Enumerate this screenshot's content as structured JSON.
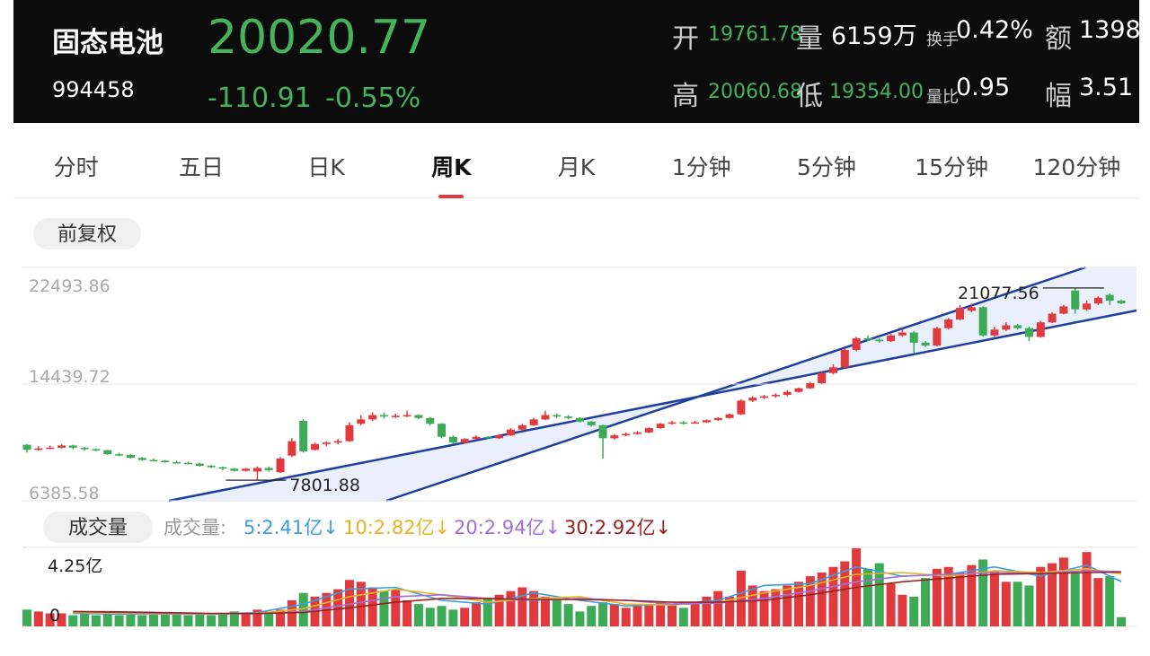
{
  "header": {
    "name": "固态电池",
    "code": "994458",
    "price": "20020.77",
    "change": "-110.91",
    "change_pct": "-0.55%",
    "stats": [
      {
        "label": "开",
        "value": "19761.78"
      },
      {
        "label": "量",
        "value": "6159万"
      },
      {
        "label": "换手",
        "value": "0.42%"
      },
      {
        "label": "额",
        "value": "1398"
      },
      {
        "label": "高",
        "value": "20060.68"
      },
      {
        "label": "低",
        "value": "19354.00"
      },
      {
        "label": "量比",
        "value": "0.95"
      },
      {
        "label": "幅",
        "value": "3.51"
      }
    ]
  },
  "tabs": [
    "分时",
    "五日",
    "日K",
    "周K",
    "月K",
    "1分钟",
    "5分钟",
    "15分钟",
    "120分钟"
  ],
  "active_tab": "周K",
  "adjust_button": "前复权",
  "chart_data": {
    "type": "candlestick",
    "ylim": [
      6385.58,
      22493.86
    ],
    "yticks": [
      22493.86,
      14439.72,
      6385.58
    ],
    "grid": true,
    "up_color": "#e0393e",
    "down_color": "#3daa56",
    "candles": [
      [
        10250,
        10300,
        9700,
        9900
      ],
      [
        9900,
        10150,
        9850,
        10000
      ],
      [
        10000,
        10200,
        9950,
        10050
      ],
      [
        10050,
        10300,
        10000,
        10200
      ],
      [
        10200,
        10250,
        9950,
        10050
      ],
      [
        10050,
        10100,
        9850,
        9950
      ],
      [
        9950,
        10000,
        9800,
        9880
      ],
      [
        9880,
        9900,
        9550,
        9600
      ],
      [
        9600,
        9700,
        9450,
        9550
      ],
      [
        9550,
        9600,
        9300,
        9350
      ],
      [
        9350,
        9400,
        9150,
        9200
      ],
      [
        9200,
        9300,
        9100,
        9150
      ],
      [
        9150,
        9200,
        9000,
        9050
      ],
      [
        9050,
        9150,
        8950,
        9000
      ],
      [
        9000,
        9100,
        8900,
        8950
      ],
      [
        8950,
        9000,
        8750,
        8800
      ],
      [
        8800,
        8850,
        8650,
        8700
      ],
      [
        8700,
        8750,
        8500,
        8600
      ],
      [
        8600,
        8650,
        8400,
        8450
      ],
      [
        8450,
        8650,
        8400,
        8600
      ],
      [
        8400,
        8750,
        7801.88,
        8650
      ],
      [
        8650,
        8750,
        8400,
        8500
      ],
      [
        8350,
        9400,
        8300,
        9300
      ],
      [
        9500,
        10700,
        9400,
        10500
      ],
      [
        11900,
        12000,
        9700,
        9800
      ],
      [
        9900,
        10400,
        9850,
        10300
      ],
      [
        10300,
        10500,
        10150,
        10400
      ],
      [
        10400,
        10650,
        10300,
        10500
      ],
      [
        10500,
        11800,
        10450,
        11600
      ],
      [
        11700,
        12300,
        11600,
        12000
      ],
      [
        12000,
        12500,
        11900,
        12300
      ],
      [
        12300,
        12450,
        12050,
        12200
      ],
      [
        12200,
        12400,
        12100,
        12250
      ],
      [
        12250,
        12600,
        12150,
        12300
      ],
      [
        12300,
        12350,
        12000,
        12100
      ],
      [
        12100,
        12150,
        11600,
        11700
      ],
      [
        11700,
        11750,
        10700,
        10800
      ],
      [
        10800,
        10900,
        10300,
        10400
      ],
      [
        10400,
        10700,
        10350,
        10650
      ],
      [
        10650,
        10900,
        10600,
        10800
      ],
      [
        10800,
        10850,
        10650,
        10700
      ],
      [
        10700,
        10950,
        10650,
        10900
      ],
      [
        10900,
        11400,
        10850,
        11300
      ],
      [
        11300,
        11700,
        11250,
        11600
      ],
      [
        11600,
        12100,
        11550,
        12000
      ],
      [
        12000,
        12600,
        11950,
        12300
      ],
      [
        12300,
        12400,
        12100,
        12200
      ],
      [
        12200,
        12300,
        12000,
        12100
      ],
      [
        12100,
        12150,
        11800,
        11850
      ],
      [
        11850,
        11900,
        11500,
        11600
      ],
      [
        11600,
        11650,
        9300,
        10700
      ],
      [
        10700,
        11000,
        10600,
        10900
      ],
      [
        10900,
        11100,
        10850,
        11000
      ],
      [
        11000,
        11200,
        10950,
        11100
      ],
      [
        11100,
        11450,
        11050,
        11400
      ],
      [
        11400,
        11750,
        11350,
        11700
      ],
      [
        11700,
        11900,
        11650,
        11800
      ],
      [
        11800,
        11900,
        11650,
        11750
      ],
      [
        11750,
        11900,
        11700,
        11800
      ],
      [
        11800,
        12000,
        11750,
        11950
      ],
      [
        11950,
        12150,
        11900,
        12100
      ],
      [
        12100,
        12400,
        12050,
        12350
      ],
      [
        12350,
        13400,
        12300,
        13300
      ],
      [
        13300,
        13600,
        13200,
        13500
      ],
      [
        13500,
        13700,
        13400,
        13600
      ],
      [
        13600,
        13800,
        13500,
        13700
      ],
      [
        13700,
        14000,
        13600,
        13900
      ],
      [
        13900,
        14200,
        13850,
        14150
      ],
      [
        14150,
        14600,
        14100,
        14500
      ],
      [
        14500,
        15300,
        14450,
        15200
      ],
      [
        15200,
        15800,
        15100,
        15600
      ],
      [
        15600,
        16900,
        15550,
        16800
      ],
      [
        16800,
        17700,
        16700,
        17600
      ],
      [
        17600,
        17800,
        17400,
        17500
      ],
      [
        17500,
        17600,
        17300,
        17400
      ],
      [
        17400,
        17900,
        17350,
        17800
      ],
      [
        17800,
        18200,
        17700,
        18000
      ],
      [
        18000,
        18100,
        16600,
        17300
      ],
      [
        17300,
        17400,
        17000,
        17100
      ],
      [
        17100,
        18400,
        17050,
        18300
      ],
      [
        18300,
        19000,
        18200,
        18900
      ],
      [
        18900,
        19900,
        18850,
        19700
      ],
      [
        19500,
        20000,
        19400,
        19750
      ],
      [
        19750,
        19800,
        17700,
        17800
      ],
      [
        17800,
        18400,
        17700,
        18200
      ],
      [
        18200,
        18700,
        18100,
        18500
      ],
      [
        18500,
        18600,
        18200,
        18300
      ],
      [
        18300,
        18400,
        17400,
        17700
      ],
      [
        17700,
        18800,
        17650,
        18700
      ],
      [
        18700,
        19400,
        18650,
        19300
      ],
      [
        19300,
        19900,
        19250,
        19800
      ],
      [
        20900,
        21077.56,
        19300,
        19600
      ],
      [
        19600,
        20200,
        19500,
        20000
      ],
      [
        20000,
        20500,
        19900,
        20400
      ],
      [
        20600,
        20700,
        19900,
        20200
      ],
      [
        20200,
        20250,
        19950,
        20020.77
      ]
    ],
    "high_label_index": 91,
    "low_label_index": 20,
    "volume_title": "成交量",
    "volume_prefix": "成交量:",
    "volume_ylim": [
      0,
      4.25
    ],
    "volume_yticks": [
      {
        "value": 4.25,
        "label": "4.25亿"
      },
      0
    ],
    "volumes": [
      0.9,
      0.8,
      0.7,
      0.7,
      0.6,
      0.7,
      0.6,
      0.7,
      0.6,
      0.7,
      0.6,
      0.7,
      0.7,
      0.7,
      0.6,
      0.7,
      0.6,
      0.7,
      0.8,
      0.7,
      0.9,
      0.8,
      0.9,
      1.4,
      1.8,
      1.6,
      1.8,
      2.0,
      2.5,
      2.4,
      2.1,
      1.9,
      2.0,
      1.4,
      1.2,
      1.0,
      1.1,
      0.9,
      1.0,
      1.3,
      1.5,
      1.7,
      1.9,
      2.1,
      1.9,
      1.6,
      1.4,
      1.2,
      0.8,
      1.1,
      1.3,
      1.2,
      1.0,
      1.1,
      1.2,
      1.3,
      1.2,
      1.0,
      1.2,
      1.6,
      1.9,
      1.6,
      3.0,
      2.2,
      1.9,
      2.0,
      2.2,
      2.4,
      2.7,
      2.9,
      3.2,
      3.5,
      4.2,
      3.1,
      3.4,
      2.3,
      1.7,
      1.6,
      2.6,
      3.1,
      3.2,
      2.9,
      3.3,
      3.6,
      3.0,
      2.4,
      2.4,
      2.2,
      3.2,
      3.4,
      3.7,
      2.9,
      4.0,
      2.6,
      2.7,
      0.5
    ],
    "volume_ma": [
      {
        "name": "5",
        "label": "5:2.41亿↓",
        "color": "#3a9de0",
        "x": [
          4,
          8,
          12,
          16,
          20,
          24,
          28,
          32,
          36,
          40,
          44,
          48,
          52,
          56,
          60,
          64,
          68,
          72,
          76,
          80,
          84,
          88,
          92,
          95
        ],
        "values": [
          0.7,
          0.66,
          0.66,
          0.66,
          0.74,
          1.2,
          2.0,
          2.1,
          1.4,
          1.2,
          1.8,
          1.4,
          1.1,
          1.2,
          1.4,
          2.2,
          2.3,
          3.2,
          2.7,
          2.8,
          3.2,
          2.7,
          3.3,
          2.41
        ]
      },
      {
        "name": "10",
        "label": "10:2.82亿↓",
        "color": "#e6b422",
        "x": [
          4,
          8,
          12,
          16,
          20,
          24,
          28,
          32,
          36,
          40,
          44,
          48,
          52,
          56,
          60,
          64,
          68,
          72,
          76,
          80,
          84,
          88,
          92,
          95
        ],
        "values": [
          0.75,
          0.7,
          0.67,
          0.66,
          0.7,
          0.95,
          1.6,
          2.0,
          1.7,
          1.3,
          1.5,
          1.6,
          1.2,
          1.15,
          1.3,
          1.8,
          2.2,
          2.8,
          2.9,
          2.7,
          3.0,
          2.9,
          3.1,
          2.82
        ]
      },
      {
        "name": "20",
        "label": "20:2.94亿↓",
        "color": "#a070d8",
        "x": [
          4,
          8,
          12,
          16,
          20,
          24,
          28,
          32,
          36,
          40,
          44,
          48,
          52,
          56,
          60,
          64,
          68,
          72,
          76,
          80,
          84,
          88,
          92,
          95
        ],
        "values": [
          0.8,
          0.75,
          0.7,
          0.68,
          0.68,
          0.8,
          1.2,
          1.6,
          1.7,
          1.5,
          1.4,
          1.5,
          1.4,
          1.2,
          1.25,
          1.5,
          1.9,
          2.4,
          2.7,
          2.8,
          2.9,
          2.85,
          3.0,
          2.94
        ]
      },
      {
        "name": "30",
        "label": "30:2.92亿↓",
        "color": "#9b2020",
        "x": [
          4,
          8,
          12,
          16,
          20,
          24,
          28,
          32,
          36,
          40,
          44,
          48,
          52,
          56,
          60,
          64,
          68,
          72,
          76,
          80,
          84,
          88,
          92,
          95
        ],
        "values": [
          0.8,
          0.78,
          0.74,
          0.7,
          0.69,
          0.75,
          1.0,
          1.3,
          1.5,
          1.5,
          1.45,
          1.45,
          1.4,
          1.3,
          1.3,
          1.4,
          1.7,
          2.1,
          2.4,
          2.6,
          2.8,
          2.85,
          2.9,
          2.92
        ]
      }
    ]
  }
}
